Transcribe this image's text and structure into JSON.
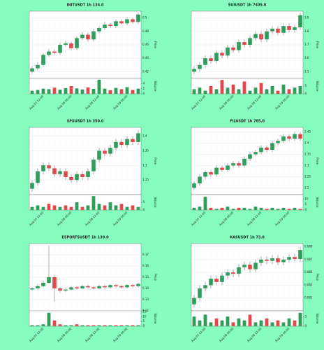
{
  "chart_data": [
    {
      "type": "candlestick",
      "title": "INITUSDT 1h 134.0",
      "y_label": "Price",
      "volume_label": "Volume",
      "up_color": "#2e9e5b",
      "down_color": "#e0494b",
      "grid": true,
      "categories": [
        null,
        null,
        "Aug 07 12:00",
        null,
        null,
        null,
        null,
        "Aug 08 00:00",
        null,
        null,
        null,
        null,
        "Aug 08 12:00",
        null,
        null,
        null,
        null,
        "Aug 09 00:00",
        null,
        null
      ],
      "open": [
        0.42,
        0.425,
        0.43,
        0.445,
        0.45,
        0.448,
        0.46,
        0.462,
        0.455,
        0.47,
        0.475,
        0.468,
        0.48,
        0.485,
        0.49,
        0.488,
        0.495,
        0.492,
        0.498,
        0.494
      ],
      "high": [
        0.428,
        0.434,
        0.448,
        0.454,
        0.453,
        0.463,
        0.466,
        0.465,
        0.473,
        0.479,
        0.478,
        0.483,
        0.488,
        0.494,
        0.493,
        0.498,
        0.498,
        0.501,
        0.5,
        0.508
      ],
      "low": [
        0.417,
        0.422,
        0.427,
        0.442,
        0.445,
        0.445,
        0.457,
        0.452,
        0.452,
        0.467,
        0.465,
        0.465,
        0.477,
        0.482,
        0.485,
        0.485,
        0.49,
        0.489,
        0.491,
        0.491
      ],
      "close": [
        0.425,
        0.43,
        0.445,
        0.45,
        0.448,
        0.46,
        0.462,
        0.455,
        0.47,
        0.475,
        0.468,
        0.48,
        0.485,
        0.49,
        0.488,
        0.495,
        0.492,
        0.498,
        0.494,
        0.505
      ],
      "volume": [
        1.2,
        1.5,
        2.0,
        1.8,
        2.4,
        1.6,
        2.2,
        3.0,
        2.1,
        1.7,
        2.5,
        1.9,
        5.5,
        2.0,
        1.4,
        2.3,
        1.8,
        2.6,
        1.5,
        2.0
      ],
      "ylim": [
        0.41,
        0.51
      ],
      "yticks": [
        0.42,
        0.44,
        0.46,
        0.48,
        0.5
      ],
      "volume_ylim": [
        0,
        6
      ],
      "volume_yticks": [
        0,
        2,
        4
      ]
    },
    {
      "type": "candlestick",
      "title": "SUIUSDT 1h 7405.0",
      "y_label": "Price",
      "volume_label": "Volume",
      "up_color": "#2e9e5b",
      "down_color": "#e0494b",
      "grid": true,
      "categories": [
        null,
        null,
        "Aug 07 12:00",
        null,
        null,
        null,
        null,
        "Aug 08 00:00",
        null,
        null,
        null,
        null,
        "Aug 08 12:00",
        null,
        null,
        null,
        null,
        "Aug 09 00:00",
        null,
        null
      ],
      "open": [
        3.5,
        3.52,
        3.55,
        3.6,
        3.58,
        3.64,
        3.62,
        3.68,
        3.66,
        3.72,
        3.7,
        3.75,
        3.78,
        3.74,
        3.8,
        3.82,
        3.79,
        3.84,
        3.81,
        3.83
      ],
      "high": [
        3.54,
        3.57,
        3.62,
        3.62,
        3.66,
        3.66,
        3.7,
        3.7,
        3.74,
        3.74,
        3.77,
        3.8,
        3.8,
        3.82,
        3.84,
        3.84,
        3.86,
        3.86,
        3.85,
        3.94
      ],
      "low": [
        3.48,
        3.5,
        3.53,
        3.56,
        3.56,
        3.6,
        3.6,
        3.64,
        3.64,
        3.68,
        3.68,
        3.73,
        3.72,
        3.72,
        3.78,
        3.77,
        3.77,
        3.79,
        3.79,
        3.81
      ],
      "close": [
        3.52,
        3.55,
        3.6,
        3.58,
        3.64,
        3.62,
        3.68,
        3.66,
        3.72,
        3.7,
        3.75,
        3.78,
        3.74,
        3.8,
        3.82,
        3.79,
        3.84,
        3.81,
        3.83,
        3.92
      ],
      "volume": [
        3,
        4,
        2,
        5,
        3,
        9,
        4,
        6,
        3,
        8,
        2,
        4,
        7,
        3,
        5,
        2,
        6,
        3,
        4,
        5
      ],
      "ylim": [
        3.45,
        3.95
      ],
      "yticks": [
        3.5,
        3.6,
        3.7,
        3.8,
        3.9
      ],
      "volume_ylim": [
        0,
        10
      ],
      "volume_yticks": [
        0,
        5
      ]
    },
    {
      "type": "candlestick",
      "title": "SPXUSDT 1h 350.0",
      "y_label": "Price",
      "volume_label": "Volume",
      "up_color": "#2e9e5b",
      "down_color": "#e0494b",
      "grid": true,
      "categories": [
        null,
        null,
        "Aug 07 12:00",
        null,
        null,
        null,
        null,
        "Aug 08 00:00",
        null,
        null,
        null,
        null,
        "Aug 08 12:00",
        null,
        null,
        null,
        null,
        "Aug 09 00:00",
        null,
        null
      ],
      "open": [
        1.22,
        1.24,
        1.28,
        1.3,
        1.29,
        1.27,
        1.28,
        1.26,
        1.25,
        1.27,
        1.26,
        1.28,
        1.32,
        1.35,
        1.34,
        1.36,
        1.38,
        1.37,
        1.39,
        1.38
      ],
      "high": [
        1.25,
        1.29,
        1.31,
        1.31,
        1.3,
        1.29,
        1.29,
        1.27,
        1.28,
        1.28,
        1.29,
        1.33,
        1.36,
        1.36,
        1.37,
        1.39,
        1.39,
        1.4,
        1.4,
        1.42
      ],
      "low": [
        1.21,
        1.23,
        1.27,
        1.28,
        1.26,
        1.26,
        1.25,
        1.24,
        1.24,
        1.25,
        1.25,
        1.27,
        1.31,
        1.33,
        1.33,
        1.35,
        1.36,
        1.36,
        1.37,
        1.37
      ],
      "close": [
        1.24,
        1.28,
        1.3,
        1.29,
        1.27,
        1.28,
        1.26,
        1.25,
        1.27,
        1.26,
        1.28,
        1.32,
        1.35,
        1.34,
        1.36,
        1.38,
        1.37,
        1.39,
        1.38,
        1.41
      ],
      "volume": [
        2,
        3,
        2,
        4,
        3,
        2,
        3,
        2,
        5,
        2,
        3,
        9,
        4,
        3,
        5,
        3,
        4,
        2,
        3,
        2
      ],
      "ylim": [
        1.2,
        1.43
      ],
      "yticks": [
        1.25,
        1.3,
        1.35,
        1.4
      ],
      "volume_ylim": [
        0,
        10
      ],
      "volume_yticks": [
        0,
        5
      ]
    },
    {
      "type": "candlestick",
      "title": "FILUSDT 1h 765.0",
      "y_label": "Price",
      "volume_label": "Volume",
      "up_color": "#2e9e5b",
      "down_color": "#e0494b",
      "grid": true,
      "categories": [
        null,
        null,
        "Aug 07 12:00",
        null,
        null,
        null,
        null,
        "Aug 08 00:00",
        null,
        null,
        null,
        null,
        "Aug 08 12:00",
        null,
        null,
        null,
        null,
        "Aug 09 00:00",
        null,
        null
      ],
      "open": [
        2.2,
        2.22,
        2.25,
        2.27,
        2.26,
        2.29,
        2.28,
        2.3,
        2.31,
        2.3,
        2.33,
        2.35,
        2.36,
        2.38,
        2.37,
        2.4,
        2.41,
        2.43,
        2.42,
        2.44
      ],
      "high": [
        2.23,
        2.26,
        2.28,
        2.28,
        2.3,
        2.3,
        2.31,
        2.32,
        2.32,
        2.34,
        2.36,
        2.37,
        2.39,
        2.39,
        2.41,
        2.42,
        2.44,
        2.44,
        2.45,
        2.45
      ],
      "low": [
        2.19,
        2.21,
        2.24,
        2.25,
        2.25,
        2.27,
        2.27,
        2.29,
        2.29,
        2.29,
        2.32,
        2.34,
        2.35,
        2.36,
        2.36,
        2.39,
        2.4,
        2.41,
        2.41,
        2.41
      ],
      "close": [
        2.22,
        2.25,
        2.27,
        2.26,
        2.29,
        2.28,
        2.3,
        2.31,
        2.3,
        2.33,
        2.35,
        2.36,
        2.38,
        2.37,
        2.4,
        2.41,
        2.43,
        2.42,
        2.44,
        2.42
      ],
      "volume": [
        2,
        3,
        12,
        2,
        1,
        2,
        3,
        1,
        2,
        2,
        1,
        3,
        2,
        1,
        2,
        1,
        2,
        1,
        2,
        1
      ],
      "ylim": [
        2.17,
        2.47
      ],
      "yticks": [
        2.2,
        2.25,
        2.3,
        2.35,
        2.4,
        2.45
      ],
      "volume_ylim": [
        0,
        14
      ],
      "volume_yticks": [
        0,
        5,
        10
      ]
    },
    {
      "type": "candlestick",
      "title": "ESPORTSUSDT 1h 139.0",
      "y_label": "Price",
      "volume_label": "Volume",
      "up_color": "#2e9e5b",
      "down_color": "#e0494b",
      "grid": true,
      "categories": [
        null,
        null,
        "Aug 07 12:00",
        null,
        null,
        null,
        null,
        "Aug 08 00:00",
        null,
        null,
        null,
        null,
        "Aug 08 12:00",
        null,
        null,
        null,
        null,
        "Aug 09 00:00",
        null,
        null
      ],
      "open": [
        0.139,
        0.14,
        0.142,
        0.145,
        0.15,
        0.14,
        0.138,
        0.139,
        0.141,
        0.14,
        0.142,
        0.141,
        0.14,
        0.142,
        0.141,
        0.143,
        0.142,
        0.141,
        0.143,
        0.142
      ],
      "high": [
        0.141,
        0.144,
        0.147,
        0.178,
        0.152,
        0.141,
        0.14,
        0.142,
        0.142,
        0.143,
        0.143,
        0.142,
        0.143,
        0.143,
        0.144,
        0.144,
        0.143,
        0.144,
        0.144,
        0.145
      ],
      "low": [
        0.138,
        0.139,
        0.141,
        0.144,
        0.128,
        0.136,
        0.137,
        0.138,
        0.139,
        0.139,
        0.14,
        0.139,
        0.139,
        0.14,
        0.14,
        0.141,
        0.14,
        0.14,
        0.141,
        0.141
      ],
      "close": [
        0.14,
        0.142,
        0.145,
        0.15,
        0.14,
        0.138,
        0.139,
        0.141,
        0.14,
        0.142,
        0.141,
        0.14,
        0.142,
        0.141,
        0.143,
        0.142,
        0.141,
        0.143,
        0.142,
        0.144
      ],
      "volume": [
        1,
        1,
        2,
        14,
        6,
        2,
        1,
        1,
        2,
        1,
        1,
        1,
        1,
        1,
        1,
        1,
        1,
        1,
        1,
        1
      ],
      "ylim": [
        0.12,
        0.18
      ],
      "yticks": [
        0.12,
        0.13,
        0.14,
        0.15,
        0.16,
        0.17
      ],
      "volume_ylim": [
        0,
        16
      ],
      "volume_yticks": [
        0,
        5,
        10,
        15
      ]
    },
    {
      "type": "candlestick",
      "title": "KASUSDT 1h 73.0",
      "y_label": "Price",
      "volume_label": "Volume",
      "up_color": "#2e9e5b",
      "down_color": "#e0494b",
      "grid": true,
      "categories": [
        null,
        null,
        "Aug 07 12:00",
        null,
        null,
        null,
        null,
        "Aug 08 00:00",
        null,
        null,
        null,
        null,
        "Aug 08 12:00",
        null,
        null,
        null,
        null,
        "Aug 09 00:00",
        null,
        null
      ],
      "open": [
        0.08,
        0.081,
        0.0825,
        0.083,
        0.084,
        0.0835,
        0.0845,
        0.085,
        0.0848,
        0.0858,
        0.0862,
        0.0855,
        0.0865,
        0.087,
        0.0868,
        0.0872,
        0.0866,
        0.087,
        0.0874,
        0.0871
      ],
      "high": [
        0.0815,
        0.083,
        0.0835,
        0.0845,
        0.0845,
        0.085,
        0.0855,
        0.0855,
        0.0863,
        0.0867,
        0.0867,
        0.087,
        0.0875,
        0.0875,
        0.0877,
        0.0877,
        0.0875,
        0.0879,
        0.0879,
        0.089
      ],
      "low": [
        0.0795,
        0.0805,
        0.082,
        0.0825,
        0.083,
        0.083,
        0.084,
        0.0843,
        0.0843,
        0.0853,
        0.085,
        0.085,
        0.086,
        0.0863,
        0.0863,
        0.0861,
        0.0861,
        0.0865,
        0.0866,
        0.0866
      ],
      "close": [
        0.081,
        0.0825,
        0.083,
        0.084,
        0.0835,
        0.0845,
        0.085,
        0.0848,
        0.0858,
        0.0862,
        0.0855,
        0.0865,
        0.087,
        0.0868,
        0.0872,
        0.0866,
        0.087,
        0.0874,
        0.0871,
        0.0885
      ],
      "volume": [
        5,
        3,
        6,
        2,
        4,
        3,
        5,
        2,
        4,
        3,
        6,
        2,
        3,
        4,
        2,
        3,
        2,
        4,
        3,
        7
      ],
      "ylim": [
        0.079,
        0.0895
      ],
      "yticks": [
        0.081,
        0.083,
        0.085,
        0.087,
        0.089
      ],
      "volume_ylim": [
        0,
        8
      ],
      "volume_yticks": [
        0,
        5
      ]
    }
  ]
}
